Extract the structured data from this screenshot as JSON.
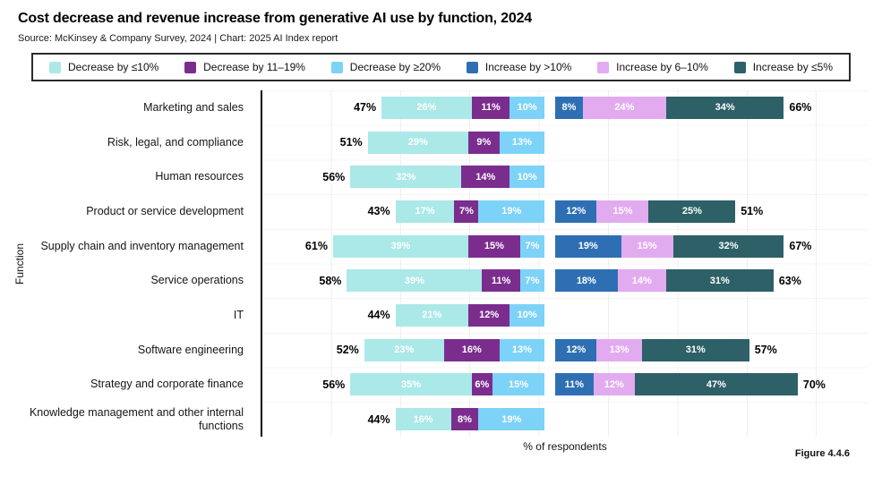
{
  "chart_data": {
    "type": "bar",
    "orientation": "horizontal",
    "stacked": true,
    "title": "Cost decrease and revenue increase from generative AI use by function, 2024",
    "source_line": "Source: McKinsey & Company Survey, 2024 | Chart: 2025 AI Index report",
    "xlabel": "% of respondents",
    "ylabel": "Function",
    "figure_label": "Figure 4.4.6",
    "value_unit": "%",
    "legend_position": "top",
    "grid": "faint-vertical",
    "legend": [
      {
        "label": "Decrease by ≤10%",
        "color": "#abe8e8"
      },
      {
        "label": "Decrease by 11–19%",
        "color": "#7b2d8e"
      },
      {
        "label": "Decrease by ≥20%",
        "color": "#7dd2f7"
      },
      {
        "label": "Increase by >10%",
        "color": "#2e6fb3"
      },
      {
        "label": "Increase by 6–10%",
        "color": "#e2abf0"
      },
      {
        "label": "Increase by ≤5%",
        "color": "#2d6067"
      }
    ],
    "categories": [
      "Marketing and sales",
      "Risk, legal, and compliance",
      "Human resources",
      "Product or service development",
      "Supply chain and inventory management",
      "Service operations",
      "IT",
      "Software engineering",
      "Strategy and corporate finance",
      "Knowledge management and other internal functions"
    ],
    "decrease": {
      "segments": [
        "Decrease by ≤10%",
        "Decrease by 11–19%",
        "Decrease by ≥20%"
      ],
      "rows": [
        {
          "total": 47,
          "values": [
            26,
            11,
            10
          ]
        },
        {
          "total": 51,
          "values": [
            29,
            9,
            13
          ]
        },
        {
          "total": 56,
          "values": [
            32,
            14,
            10
          ]
        },
        {
          "total": 43,
          "values": [
            17,
            7,
            19
          ]
        },
        {
          "total": 61,
          "values": [
            39,
            15,
            7
          ]
        },
        {
          "total": 58,
          "values": [
            39,
            11,
            7
          ]
        },
        {
          "total": 44,
          "values": [
            21,
            12,
            10
          ]
        },
        {
          "total": 52,
          "values": [
            23,
            16,
            13
          ]
        },
        {
          "total": 56,
          "values": [
            35,
            6,
            15
          ]
        },
        {
          "total": 44,
          "values": [
            16,
            8,
            19
          ]
        }
      ]
    },
    "increase": {
      "segments": [
        "Increase by >10%",
        "Increase by 6–10%",
        "Increase by ≤5%"
      ],
      "rows": [
        {
          "total": 66,
          "values": [
            8,
            24,
            34
          ]
        },
        null,
        null,
        {
          "total": 51,
          "values": [
            12,
            15,
            25
          ]
        },
        {
          "total": 67,
          "values": [
            19,
            15,
            32
          ]
        },
        {
          "total": 63,
          "values": [
            18,
            14,
            31
          ]
        },
        null,
        {
          "total": 57,
          "values": [
            12,
            13,
            31
          ]
        },
        {
          "total": 70,
          "values": [
            11,
            12,
            47
          ]
        },
        null
      ]
    }
  }
}
